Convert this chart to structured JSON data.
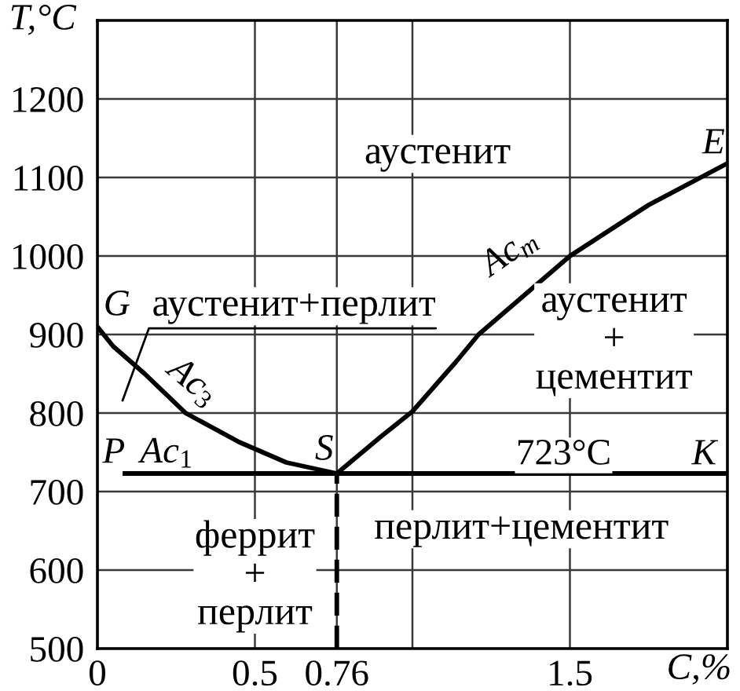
{
  "chart_data": {
    "type": "line",
    "xlabel": "C,%",
    "ylabel": "T,°C",
    "xlim": [
      0,
      2
    ],
    "ylim": [
      500,
      1300
    ],
    "xticks": [
      0,
      0.5,
      0.76,
      {
        "value": 1,
        "label": null
      },
      1.5
    ],
    "yticks": [
      500,
      600,
      700,
      800,
      900,
      1000,
      1100,
      1200
    ],
    "grid": true,
    "series": [
      {
        "color": "#000000",
        "x": [
          0,
          0.05,
          0.15,
          0.28,
          0.45,
          0.6,
          0.76
        ],
        "values": [
          910,
          885,
          850,
          800,
          763,
          737,
          723
        ]
      },
      {
        "color": "#000000",
        "x": [
          0.76,
          0.9,
          1.0,
          1.14,
          1.21,
          1.5,
          1.75,
          2.0
        ],
        "values": [
          723,
          770,
          802,
          866,
          900,
          1000,
          1065,
          1118
        ]
      },
      {
        "color": "#000000",
        "x": [
          0.08,
          2.0
        ],
        "values": [
          723,
          723
        ]
      },
      {
        "color": "#000000",
        "x": [
          0.76,
          0.76
        ],
        "values": [
          500,
          723
        ],
        "line_style": "dashed"
      }
    ],
    "annotations": [
      "G",
      "аустенит+перлит",
      "Ac$_{3}$",
      "Ac$_{1}$",
      "P",
      "S",
      "аустенит",
      "Ac$_{m}$",
      "E",
      "аустенит\n+\nцементит",
      "723°C",
      "K",
      "феррит\n+\nперлит",
      "перлит+цементит"
    ]
  }
}
